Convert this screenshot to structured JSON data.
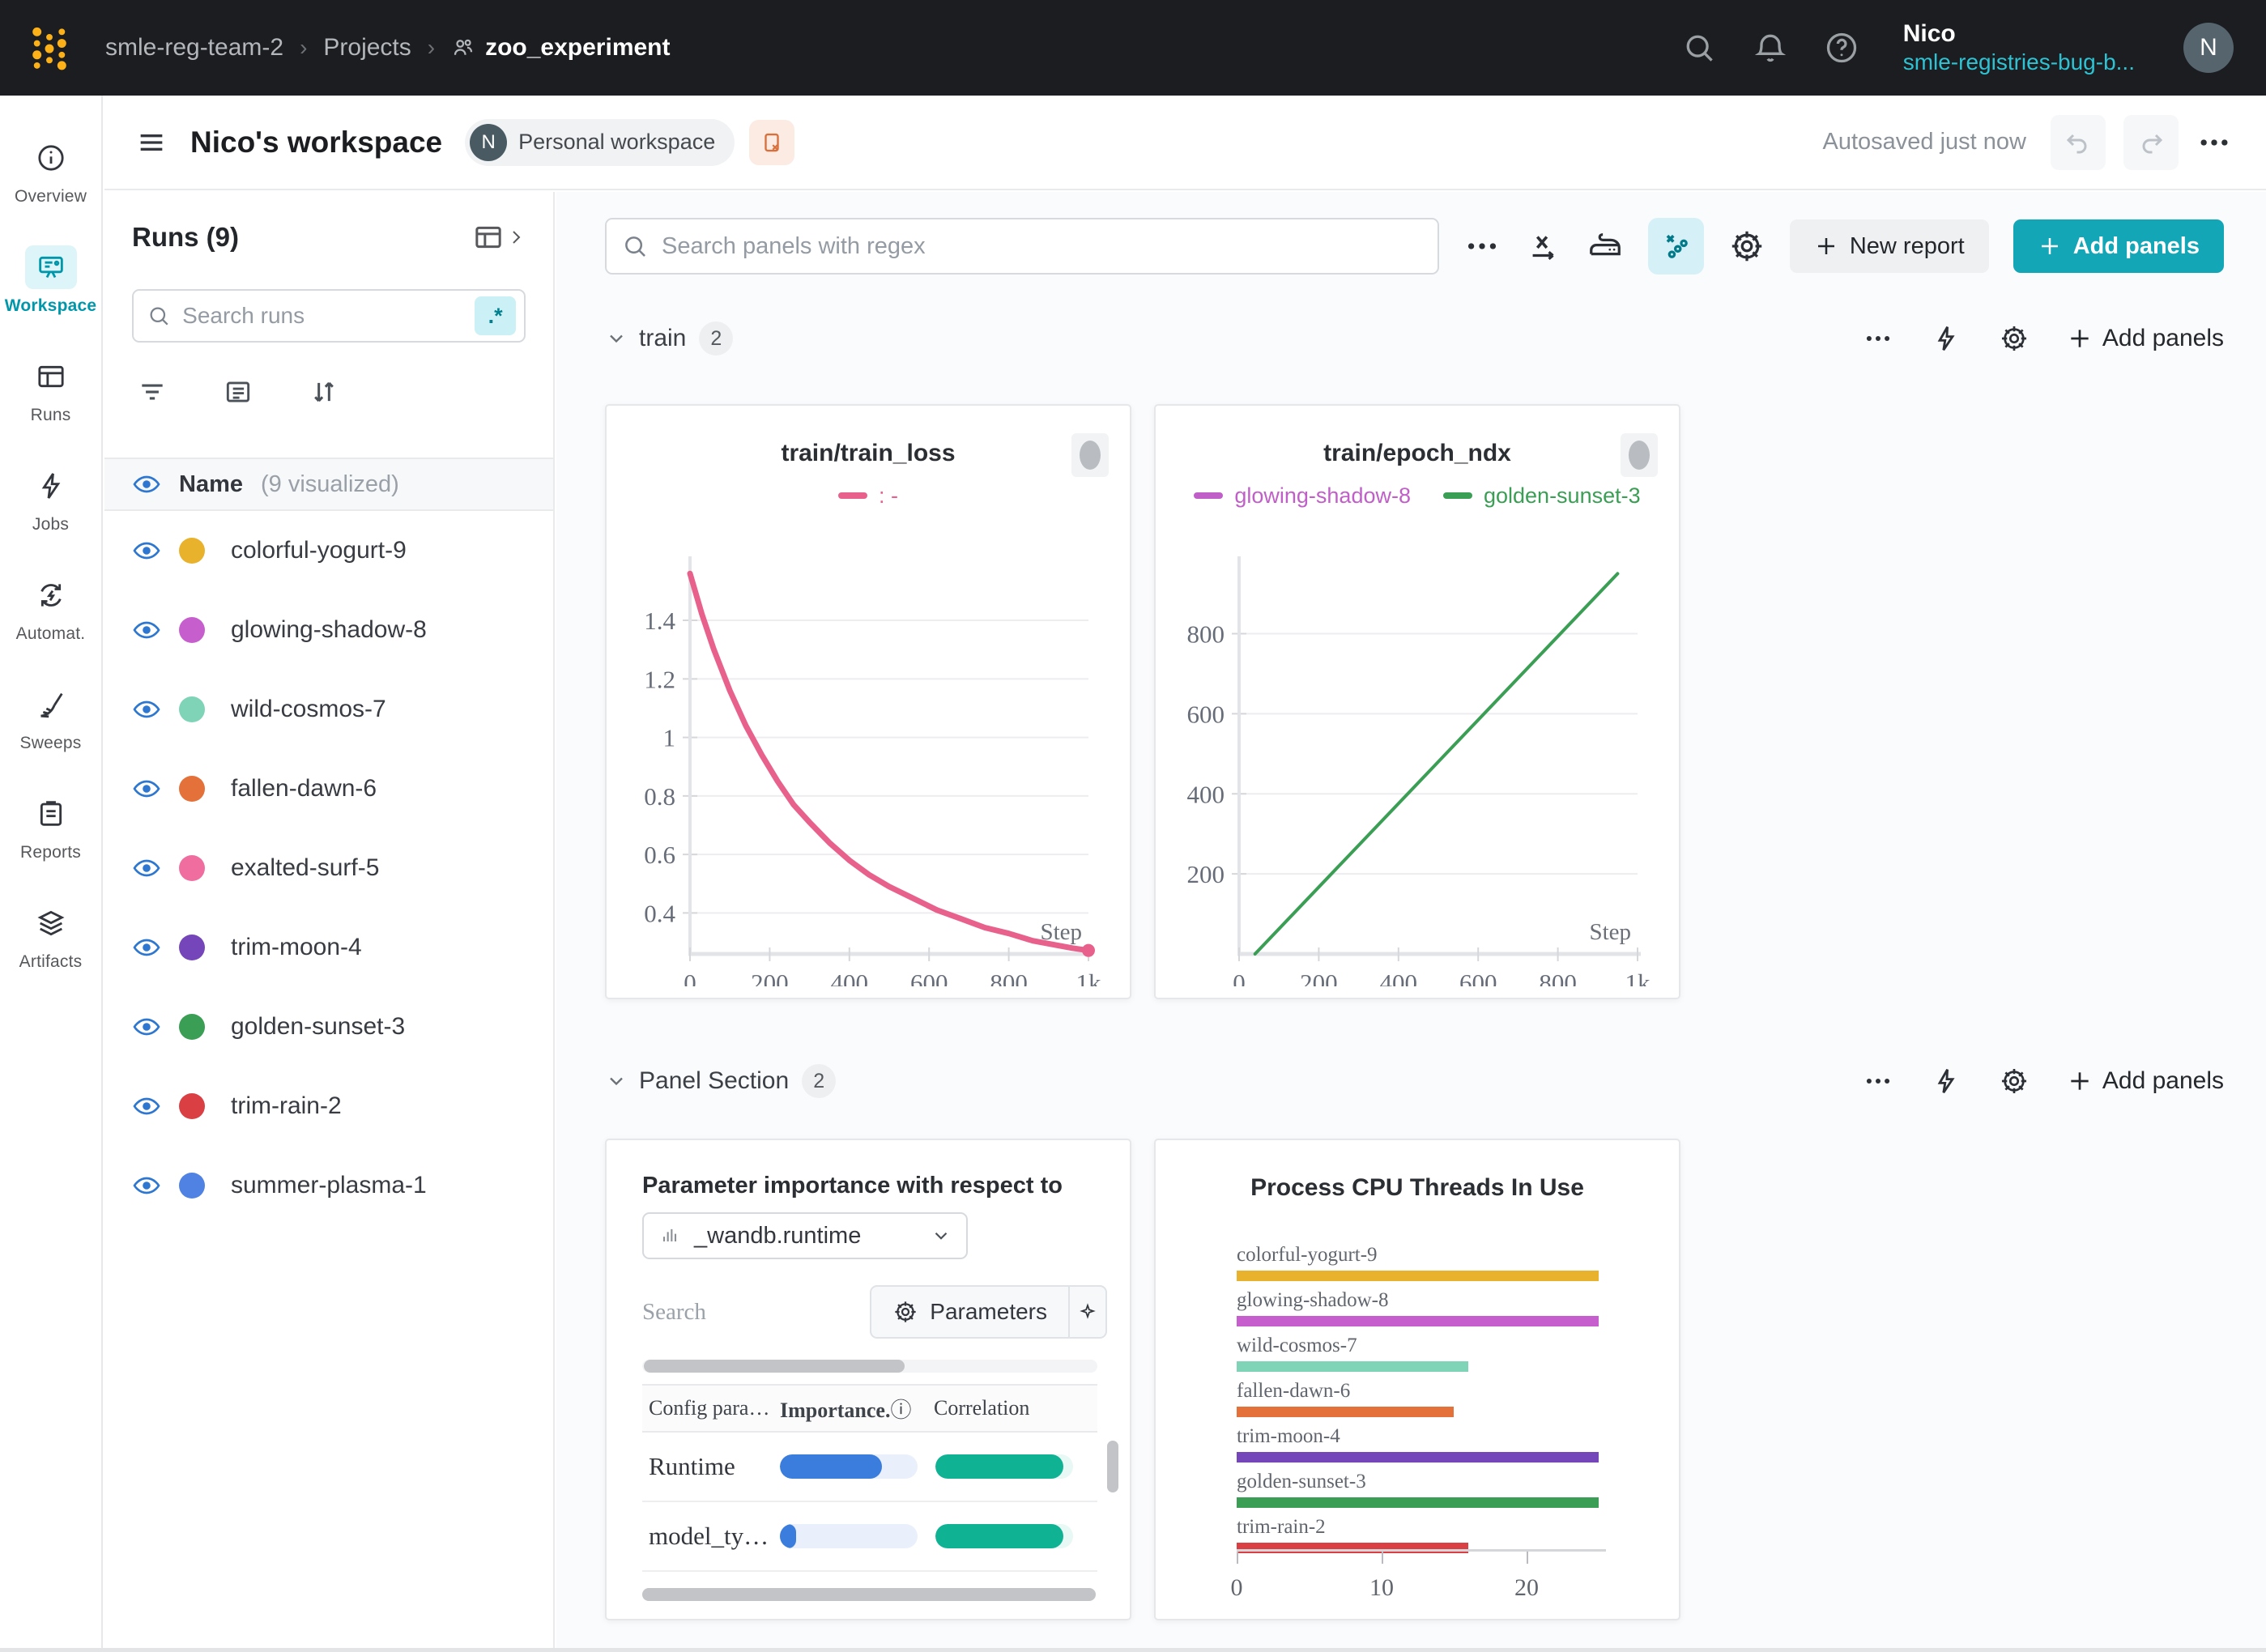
{
  "nav": {
    "breadcrumb": [
      "smle-reg-team-2",
      "Projects",
      "zoo_experiment"
    ],
    "user": {
      "name": "Nico",
      "team": "smle-registries-bug-b...",
      "initial": "N"
    }
  },
  "workspace_header": {
    "title": "Nico's workspace",
    "badge_initial": "N",
    "badge_label": "Personal workspace",
    "autosaved": "Autosaved just now"
  },
  "sidebar": {
    "items": [
      {
        "label": "Overview",
        "icon": "overview",
        "active": false
      },
      {
        "label": "Workspace",
        "icon": "workspace",
        "active": true
      },
      {
        "label": "Runs",
        "icon": "runs",
        "active": false
      },
      {
        "label": "Jobs",
        "icon": "jobs",
        "active": false
      },
      {
        "label": "Automat.",
        "icon": "automations",
        "active": false
      },
      {
        "label": "Sweeps",
        "icon": "sweeps",
        "active": false
      },
      {
        "label": "Reports",
        "icon": "reports",
        "active": false
      },
      {
        "label": "Artifacts",
        "icon": "artifacts",
        "active": false
      }
    ]
  },
  "runs_panel": {
    "title": "Runs (9)",
    "search_placeholder": "Search runs",
    "regex_badge": ".*",
    "name_header": "Name",
    "visualized": "(9 visualized)",
    "runs": [
      {
        "name": "colorful-yogurt-9",
        "color": "#e8b22d"
      },
      {
        "name": "glowing-shadow-8",
        "color": "#c75ecd"
      },
      {
        "name": "wild-cosmos-7",
        "color": "#7fd4b8"
      },
      {
        "name": "fallen-dawn-6",
        "color": "#e4703a"
      },
      {
        "name": "exalted-surf-5",
        "color": "#ef6e9f"
      },
      {
        "name": "trim-moon-4",
        "color": "#7446b9"
      },
      {
        "name": "golden-sunset-3",
        "color": "#3b9e55"
      },
      {
        "name": "trim-rain-2",
        "color": "#d93f43"
      },
      {
        "name": "summer-plasma-1",
        "color": "#4f82e3"
      }
    ]
  },
  "toolbar": {
    "search_placeholder": "Search panels with regex",
    "new_report": "New report",
    "add_panels": "Add panels"
  },
  "sections": [
    {
      "label": "train",
      "count": "2",
      "add": "Add panels"
    },
    {
      "label": "Panel Section",
      "count": "2",
      "add": "Add panels"
    }
  ],
  "chart_data": [
    {
      "type": "line",
      "title": "train/train_loss",
      "xlabel": "Step",
      "legend": [
        {
          "label": ": -",
          "color": "#e8618c"
        }
      ],
      "xlim": [
        0,
        1000
      ],
      "ylim": [
        0.26,
        1.58
      ],
      "yticks": [
        {
          "v": 0.4,
          "label": "0.4"
        },
        {
          "v": 0.6,
          "label": "0.6"
        },
        {
          "v": 0.8,
          "label": "0.8"
        },
        {
          "v": 1.0,
          "label": "1"
        },
        {
          "v": 1.2,
          "label": "1.2"
        },
        {
          "v": 1.4,
          "label": "1.4"
        }
      ],
      "xticks": [
        {
          "v": 0,
          "label": "0"
        },
        {
          "v": 200,
          "label": "200"
        },
        {
          "v": 400,
          "label": "400"
        },
        {
          "v": 600,
          "label": "600"
        },
        {
          "v": 800,
          "label": "800"
        },
        {
          "v": 1000,
          "label": "1k"
        }
      ],
      "series": [
        {
          "name": ": -",
          "color": "#e8618c",
          "width": 7,
          "end_dot": true,
          "points": [
            [
              0,
              1.56
            ],
            [
              30,
              1.42
            ],
            [
              60,
              1.3
            ],
            [
              100,
              1.16
            ],
            [
              140,
              1.04
            ],
            [
              180,
              0.94
            ],
            [
              220,
              0.85
            ],
            [
              260,
              0.77
            ],
            [
              300,
              0.71
            ],
            [
              350,
              0.64
            ],
            [
              400,
              0.58
            ],
            [
              450,
              0.53
            ],
            [
              500,
              0.49
            ],
            [
              560,
              0.45
            ],
            [
              620,
              0.41
            ],
            [
              680,
              0.38
            ],
            [
              740,
              0.35
            ],
            [
              800,
              0.33
            ],
            [
              860,
              0.305
            ],
            [
              920,
              0.29
            ],
            [
              960,
              0.28
            ],
            [
              1000,
              0.272
            ]
          ]
        }
      ]
    },
    {
      "type": "line",
      "title": "train/epoch_ndx",
      "xlabel": "Step",
      "legend": [
        {
          "label": "glowing-shadow-8",
          "color": "#c05fc7"
        },
        {
          "label": "golden-sunset-3",
          "color": "#3a9e54"
        }
      ],
      "xlim": [
        0,
        1000
      ],
      "ylim": [
        0,
        965
      ],
      "yticks": [
        {
          "v": 200,
          "label": "200"
        },
        {
          "v": 400,
          "label": "400"
        },
        {
          "v": 600,
          "label": "600"
        },
        {
          "v": 800,
          "label": "800"
        }
      ],
      "xticks": [
        {
          "v": 0,
          "label": "0"
        },
        {
          "v": 200,
          "label": "200"
        },
        {
          "v": 400,
          "label": "400"
        },
        {
          "v": 600,
          "label": "600"
        },
        {
          "v": 800,
          "label": "800"
        },
        {
          "v": 1000,
          "label": "1k"
        }
      ],
      "series": [
        {
          "name": "golden-sunset-3",
          "color": "#3a9e54",
          "width": 4,
          "end_dot": false,
          "points": [
            [
              40,
              0
            ],
            [
              950,
              950
            ]
          ]
        }
      ]
    },
    {
      "type": "importance_table",
      "title": "Parameter importance with respect to",
      "metric": "_wandb.runtime",
      "search_placeholder": "Search",
      "parameters_label": "Parameters",
      "columns": {
        "c1": "Config para…",
        "c2": "Importance.",
        "c2_info": "ⓘ",
        "c3": "Correlation"
      },
      "importance_color": "#3b7ddd",
      "importance_track": "#e9f0fc",
      "correlation_color": "#10b294",
      "correlation_track": "#e8f8f5",
      "rows": [
        {
          "name": "Runtime",
          "importance": 0.74,
          "correlation": 0.93
        },
        {
          "name": "model_ty…",
          "importance": 0.12,
          "correlation": 0.93
        }
      ]
    },
    {
      "type": "bar",
      "title": "Process CPU Threads In Use",
      "categories": [
        "colorful-yogurt-9",
        "glowing-shadow-8",
        "wild-cosmos-7",
        "fallen-dawn-6",
        "trim-moon-4",
        "golden-sunset-3",
        "trim-rain-2"
      ],
      "values": [
        25,
        25,
        16,
        15,
        25,
        25,
        16
      ],
      "colors": [
        "#e8b22d",
        "#c75ecd",
        "#7fd4b8",
        "#e4703a",
        "#7446b9",
        "#3b9e55",
        "#d93f43"
      ],
      "xticks": [
        {
          "v": 0,
          "label": "0"
        },
        {
          "v": 10,
          "label": "10"
        },
        {
          "v": 20,
          "label": "20"
        }
      ],
      "xlim": [
        0,
        25.5
      ]
    }
  ]
}
